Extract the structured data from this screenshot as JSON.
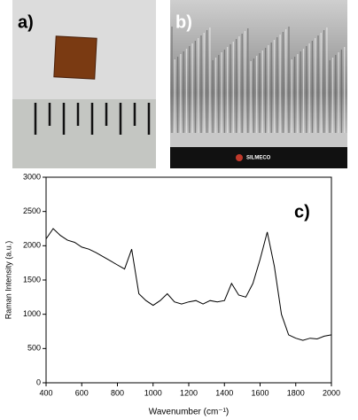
{
  "panels": {
    "a": {
      "label": "a)"
    },
    "b": {
      "label": "b)",
      "logo": "SILMECO"
    }
  },
  "chart_data": {
    "type": "line",
    "annotation": "c)",
    "x_label": "Wavenumber (cm⁻¹)",
    "y_label": "Raman Intensity (a.u.)",
    "x": [
      400,
      440,
      480,
      520,
      560,
      600,
      640,
      680,
      720,
      760,
      800,
      840,
      880,
      920,
      960,
      1000,
      1040,
      1080,
      1120,
      1160,
      1200,
      1240,
      1280,
      1320,
      1360,
      1400,
      1440,
      1480,
      1520,
      1560,
      1600,
      1640,
      1680,
      1720,
      1760,
      1800,
      1840,
      1880,
      1920,
      1960,
      2000
    ],
    "values": [
      2100,
      2250,
      2150,
      2080,
      2050,
      1980,
      1950,
      1900,
      1840,
      1780,
      1720,
      1660,
      1950,
      1300,
      1200,
      1130,
      1200,
      1300,
      1180,
      1150,
      1180,
      1200,
      1150,
      1200,
      1180,
      1200,
      1450,
      1280,
      1250,
      1450,
      1800,
      2200,
      1700,
      1000,
      700,
      650,
      620,
      650,
      640,
      680,
      700
    ],
    "color": "#000000",
    "xlim": [
      400,
      2000
    ],
    "xticks": [
      400,
      600,
      800,
      1000,
      1200,
      1400,
      1600,
      1800,
      2000
    ],
    "ylim": [
      0,
      3000
    ],
    "yticks": [
      0,
      500,
      1000,
      1500,
      2000,
      2500,
      3000
    ],
    "grid": false
  }
}
